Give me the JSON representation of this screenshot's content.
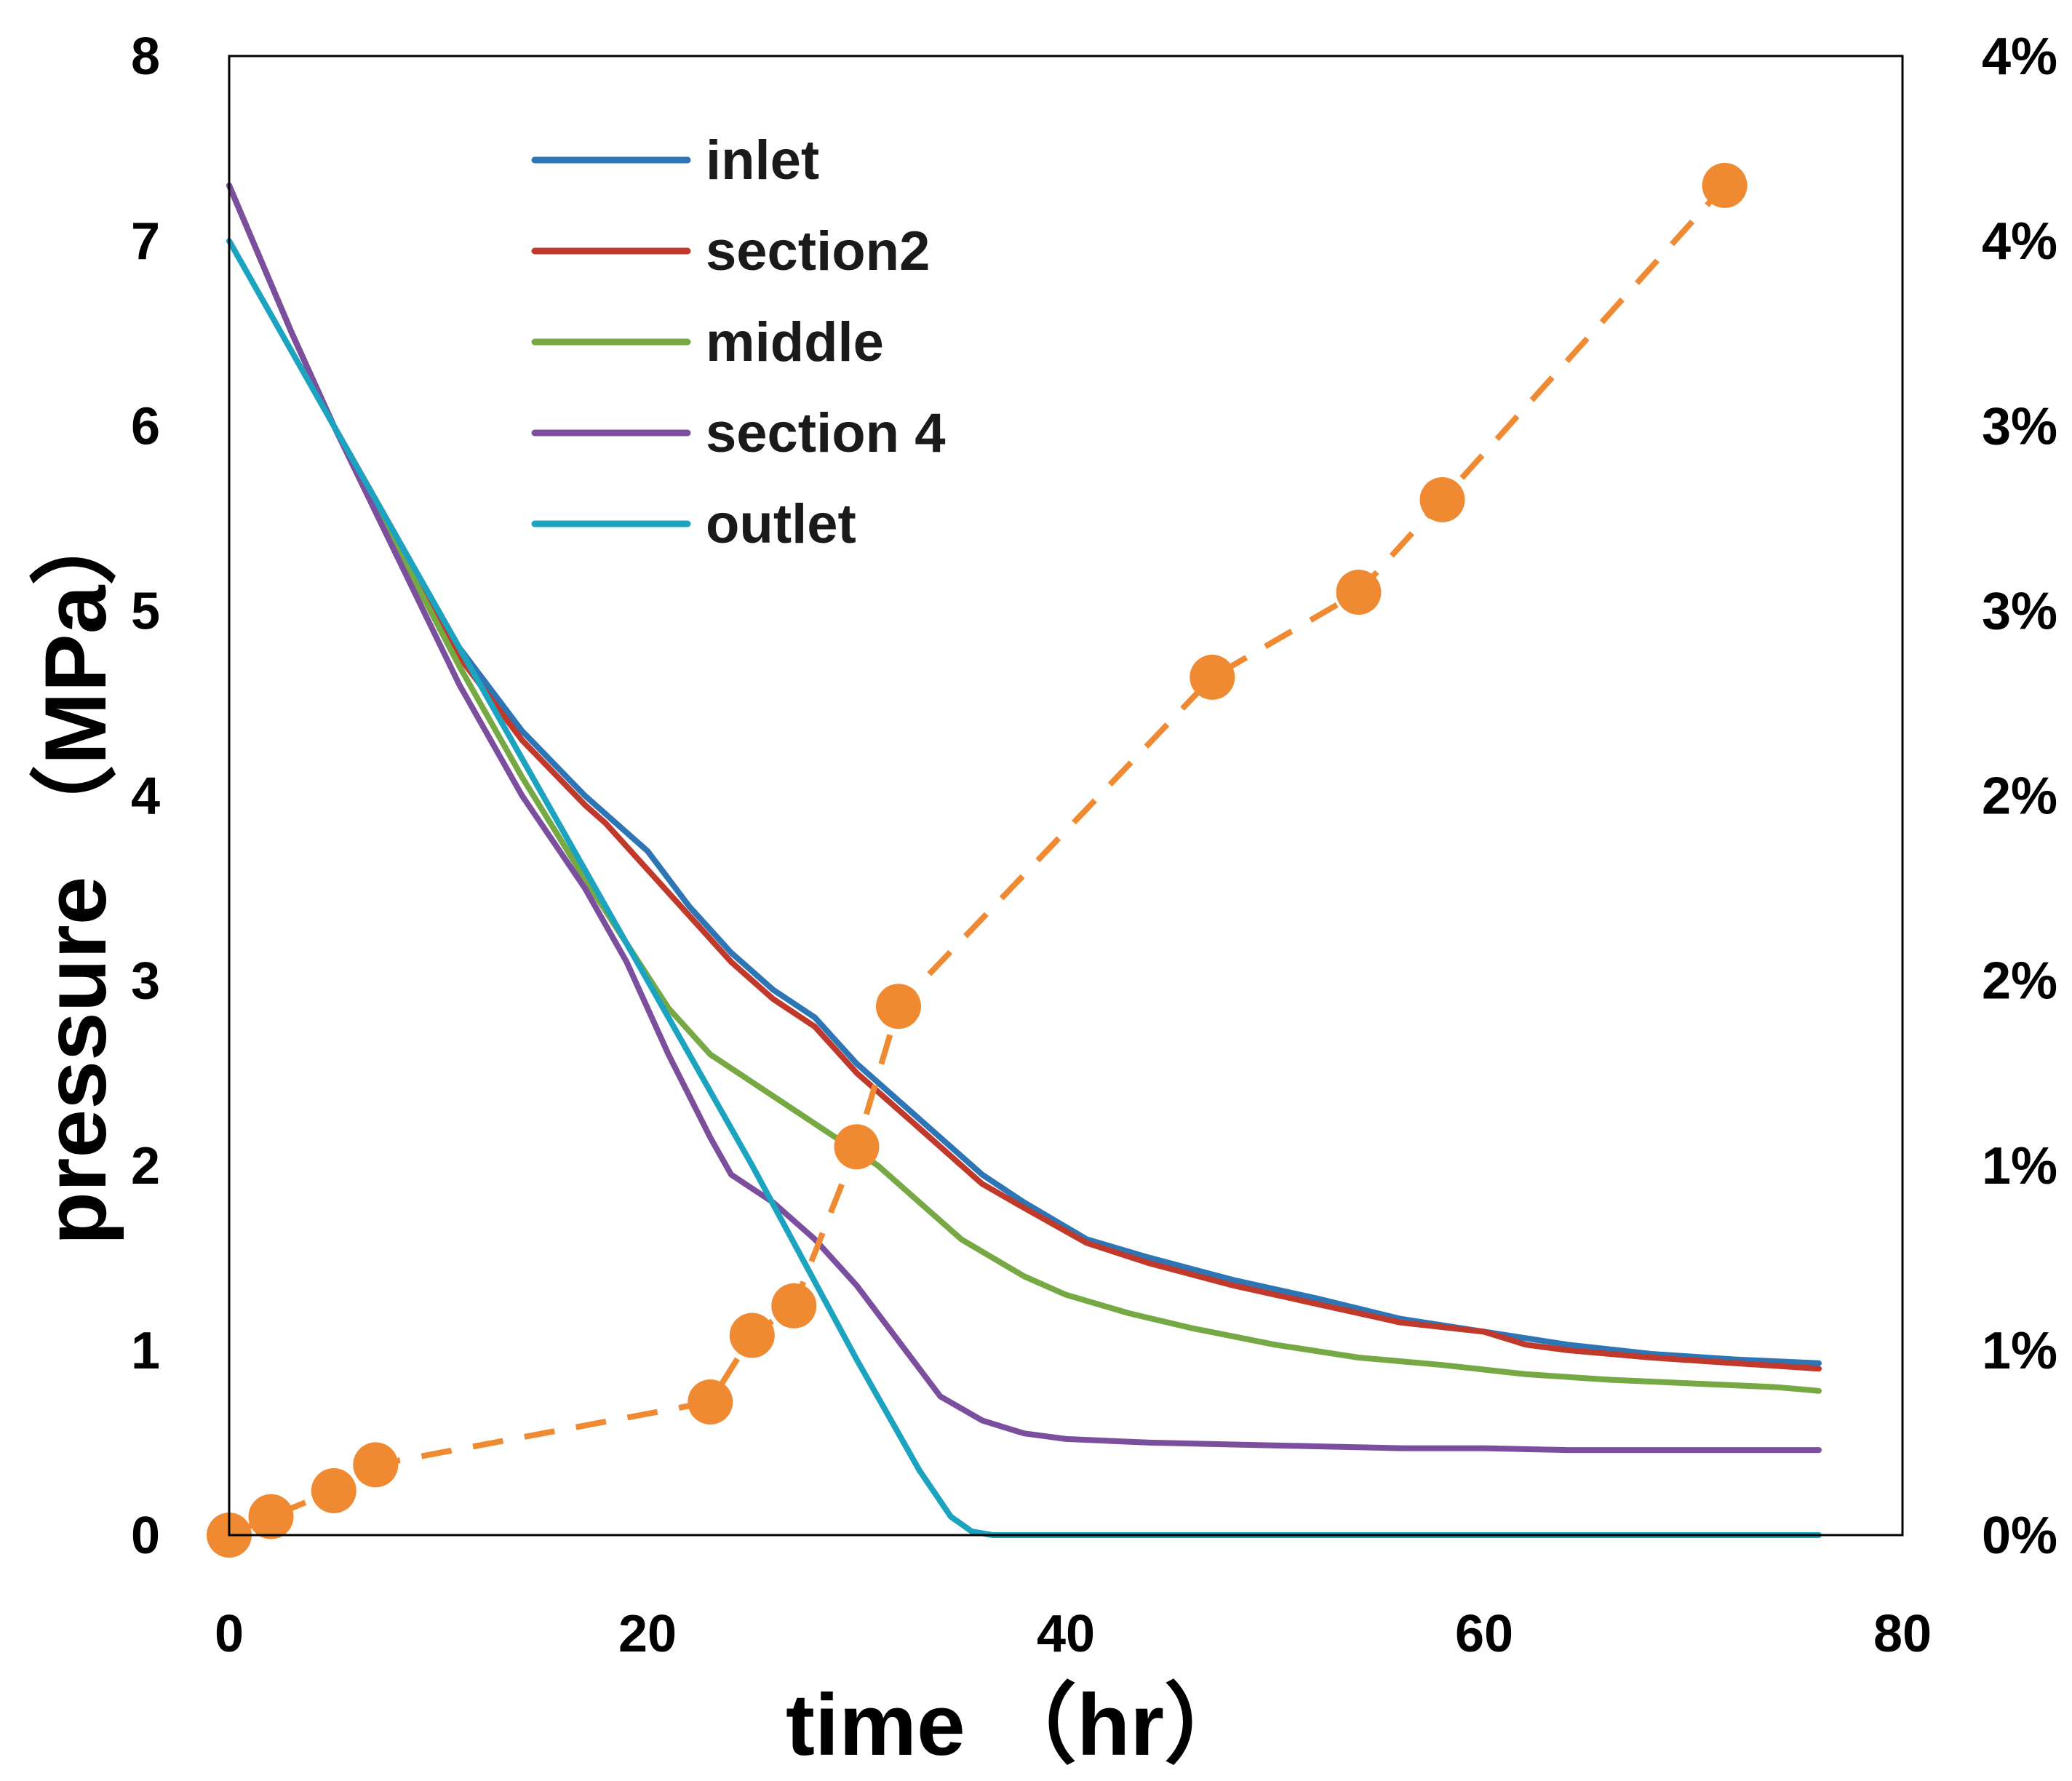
{
  "chart_data": {
    "type": "line",
    "title": "",
    "xlabel": "time （hr）",
    "ylabel": "pressure （MPa）",
    "xlim": [
      0,
      80
    ],
    "ylim": [
      0,
      8
    ],
    "y2lim": [
      0,
      0.04
    ],
    "x_ticks": [
      "0",
      "20",
      "40",
      "60",
      "80"
    ],
    "y_ticks": [
      "0",
      "1",
      "2",
      "3",
      "4",
      "5",
      "6",
      "7",
      "8"
    ],
    "y2_ticks": [
      "0%",
      "1%",
      "1%",
      "2%",
      "2%",
      "3%",
      "3%",
      "4%",
      "4%"
    ],
    "grid": false,
    "legend_position": "top-left",
    "series": [
      {
        "name": "inlet",
        "color": "#2E75B6",
        "axis": "left",
        "style": "solid",
        "x": [
          0,
          3,
          5,
          8,
          11,
          14,
          17,
          18,
          20,
          22,
          24,
          26,
          28,
          30,
          33,
          36,
          38,
          41,
          44,
          48,
          52,
          56,
          60,
          64,
          68,
          72,
          76
        ],
        "y": [
          7.3,
          6.5,
          6.0,
          5.4,
          4.8,
          4.35,
          4.0,
          3.9,
          3.7,
          3.4,
          3.15,
          2.95,
          2.8,
          2.55,
          2.25,
          1.95,
          1.8,
          1.6,
          1.5,
          1.38,
          1.28,
          1.17,
          1.1,
          1.03,
          0.98,
          0.95,
          0.93
        ]
      },
      {
        "name": "section2",
        "color": "#C0392B",
        "axis": "left",
        "style": "solid",
        "x": [
          0,
          3,
          5,
          8,
          11,
          14,
          17,
          18,
          20,
          22,
          24,
          26,
          28,
          30,
          33,
          36,
          38,
          41,
          44,
          48,
          52,
          56,
          60,
          62,
          64,
          68,
          72,
          76
        ],
        "y": [
          7.3,
          6.5,
          6.0,
          5.4,
          4.75,
          4.3,
          3.95,
          3.85,
          3.6,
          3.35,
          3.1,
          2.9,
          2.75,
          2.5,
          2.2,
          1.9,
          1.77,
          1.58,
          1.47,
          1.35,
          1.25,
          1.15,
          1.1,
          1.03,
          1.0,
          0.96,
          0.93,
          0.9
        ]
      },
      {
        "name": "middle",
        "color": "#76A844",
        "axis": "left",
        "style": "solid",
        "x": [
          0,
          3,
          5,
          8,
          11,
          14,
          17,
          19,
          21,
          23,
          25,
          27,
          29,
          31,
          33,
          35,
          38,
          40,
          43,
          46,
          50,
          54,
          58,
          62,
          66,
          70,
          74,
          76
        ],
        "y": [
          7.3,
          6.5,
          6.0,
          5.35,
          4.7,
          4.1,
          3.55,
          3.2,
          2.85,
          2.6,
          2.45,
          2.3,
          2.15,
          2.0,
          1.8,
          1.6,
          1.4,
          1.3,
          1.2,
          1.12,
          1.03,
          0.96,
          0.92,
          0.87,
          0.84,
          0.82,
          0.8,
          0.78
        ]
      },
      {
        "name": "section 4",
        "color": "#7B4F9E",
        "axis": "left",
        "style": "solid",
        "x": [
          0,
          3,
          5,
          8,
          11,
          14,
          17,
          19,
          21,
          23,
          24,
          26,
          28,
          30,
          32,
          34,
          36,
          38,
          40,
          44,
          48,
          52,
          56,
          60,
          64,
          68,
          72,
          76
        ],
        "y": [
          7.3,
          6.5,
          6.0,
          5.3,
          4.6,
          4.0,
          3.5,
          3.1,
          2.6,
          2.15,
          1.95,
          1.8,
          1.6,
          1.35,
          1.05,
          0.75,
          0.62,
          0.55,
          0.52,
          0.5,
          0.49,
          0.48,
          0.47,
          0.47,
          0.46,
          0.46,
          0.46,
          0.46
        ]
      },
      {
        "name": "outlet",
        "color": "#1BA3C0",
        "axis": "left",
        "style": "solid",
        "x": [
          0,
          5,
          10,
          15,
          20,
          25,
          30,
          33,
          34.5,
          35.5,
          36.5,
          40,
          50,
          60,
          70,
          76
        ],
        "y": [
          7.0,
          6.0,
          5.0,
          4.0,
          3.0,
          2.0,
          0.95,
          0.35,
          0.1,
          0.02,
          0.0,
          0.0,
          0.0,
          0.0,
          0.0,
          0.0
        ]
      },
      {
        "name": "",
        "color": "#F08A32",
        "axis": "right",
        "style": "dashed-markers",
        "x": [
          0,
          2,
          5,
          7,
          23,
          25,
          27,
          30,
          32,
          47,
          54,
          58,
          71.5
        ],
        "y": [
          0.0,
          0.0005,
          0.0012,
          0.0019,
          0.0036,
          0.0054,
          0.0062,
          0.0105,
          0.0143,
          0.0232,
          0.0255,
          0.028,
          0.0365
        ]
      }
    ]
  }
}
